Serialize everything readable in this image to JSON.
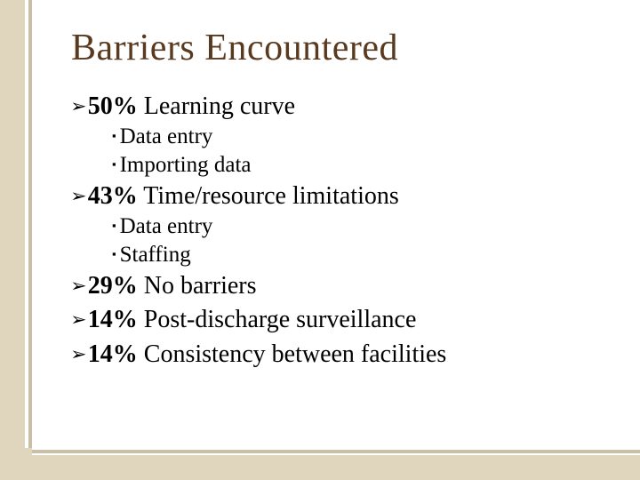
{
  "title": "Barriers Encountered",
  "colors": {
    "title": "#5a3a1f",
    "text": "#000000",
    "stripe": "#e0d5bd",
    "stripe_accent": "#c9bfa6",
    "background": "#ffffff"
  },
  "bullets": {
    "main_glyph": "➢",
    "sub_glyph": "▪"
  },
  "items": [
    {
      "pct": "50%",
      "label": "Learning curve",
      "subs": [
        "Data entry",
        "Importing data"
      ]
    },
    {
      "pct": "43%",
      "label": "Time/resource limitations",
      "subs": [
        "Data entry",
        "Staffing"
      ]
    },
    {
      "pct": "29%",
      "label": "No barriers",
      "subs": []
    },
    {
      "pct": "14%",
      "label": "Post-discharge surveillance",
      "subs": []
    },
    {
      "pct": "14%",
      "label": "Consistency between facilities",
      "subs": []
    }
  ]
}
